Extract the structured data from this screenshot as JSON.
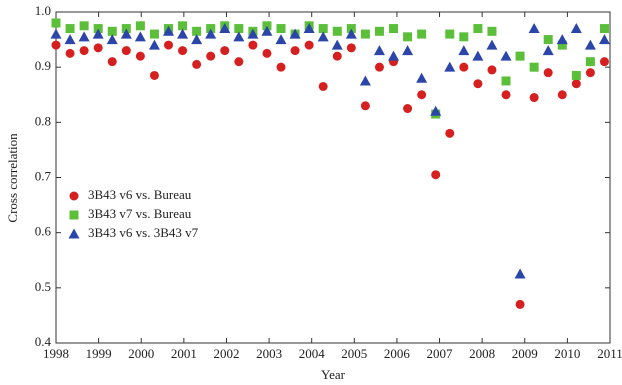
{
  "chart_data": {
    "type": "scatter",
    "x_label": "Year",
    "y_label": "Cross correlation",
    "x": [
      1998.0,
      1998.33,
      1998.66,
      1998.99,
      1999.32,
      1999.65,
      1999.98,
      2000.31,
      2000.64,
      2000.97,
      2001.3,
      2001.63,
      2001.96,
      2002.29,
      2002.62,
      2002.95,
      2003.28,
      2003.61,
      2003.94,
      2004.27,
      2004.6,
      2004.93,
      2005.26,
      2005.59,
      2005.92,
      2006.25,
      2006.58,
      2006.91,
      2007.24,
      2007.57,
      2007.9,
      2008.23,
      2008.56,
      2008.89,
      2009.22,
      2009.55,
      2009.88,
      2010.21,
      2010.54,
      2010.87
    ],
    "series": [
      {
        "name": "3B43 v6 vs. Bureau",
        "color": "#d62020",
        "marker": "circle",
        "values": [
          0.94,
          0.925,
          0.93,
          0.935,
          0.91,
          0.93,
          0.92,
          0.885,
          0.94,
          0.93,
          0.905,
          0.92,
          0.93,
          0.91,
          0.94,
          0.925,
          0.9,
          0.93,
          0.94,
          0.865,
          0.92,
          0.935,
          0.83,
          0.9,
          0.91,
          0.825,
          0.85,
          0.705,
          0.78,
          0.9,
          0.87,
          0.895,
          0.85,
          0.47,
          0.845,
          0.89,
          0.85,
          0.87,
          0.89,
          0.91
        ]
      },
      {
        "name": "3B43 v7 vs. Bureau",
        "color": "#5cbf3a",
        "marker": "square",
        "values": [
          0.98,
          0.97,
          0.975,
          0.97,
          0.965,
          0.97,
          0.975,
          0.96,
          0.97,
          0.975,
          0.965,
          0.97,
          0.975,
          0.97,
          0.965,
          0.975,
          0.97,
          0.96,
          0.975,
          0.97,
          0.965,
          0.97,
          0.96,
          0.965,
          0.97,
          0.955,
          0.96,
          0.815,
          0.96,
          0.955,
          0.97,
          0.965,
          0.875,
          0.92,
          0.9,
          0.95,
          0.94,
          0.885,
          0.91,
          0.97
        ]
      },
      {
        "name": "3B43 v6 vs. 3B43 v7",
        "color": "#2b45a8",
        "marker": "triangle",
        "values": [
          0.96,
          0.95,
          0.955,
          0.96,
          0.95,
          0.96,
          0.955,
          0.94,
          0.965,
          0.96,
          0.95,
          0.96,
          0.97,
          0.955,
          0.96,
          0.965,
          0.95,
          0.96,
          0.97,
          0.955,
          0.94,
          0.96,
          0.875,
          0.93,
          0.92,
          0.93,
          0.88,
          0.82,
          0.9,
          0.93,
          0.92,
          0.94,
          0.92,
          0.525,
          0.97,
          0.93,
          0.95,
          0.97,
          0.94,
          0.95
        ]
      }
    ],
    "xlim": [
      1998,
      2011
    ],
    "xticks": [
      1998,
      1999,
      2000,
      2001,
      2002,
      2003,
      2004,
      2005,
      2006,
      2007,
      2008,
      2009,
      2010,
      2011
    ],
    "ylim": [
      0.4,
      1
    ],
    "yticks": [
      0.4,
      0.5,
      0.6,
      0.7,
      0.8,
      0.9,
      {
        "value": 1,
        "label": "1.0"
      }
    ],
    "legend_position": "left"
  }
}
